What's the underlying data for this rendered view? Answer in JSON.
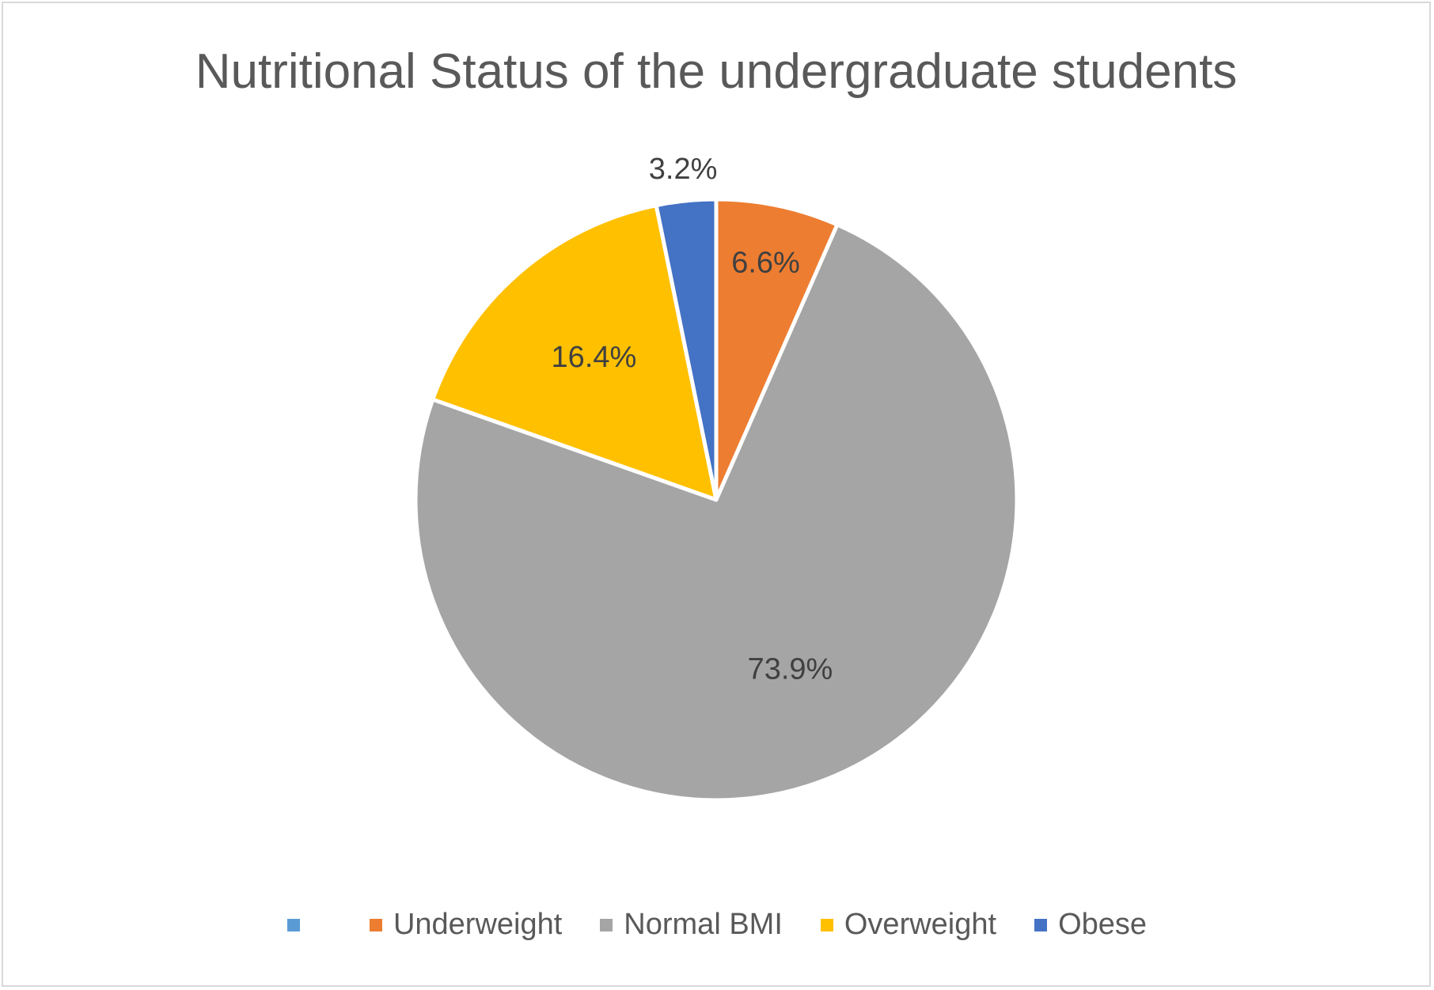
{
  "chart_data": {
    "type": "pie",
    "title": "Nutritional Status of the undergraduate students",
    "categories": [
      "",
      "Underweight",
      "Normal BMI",
      "Overweight",
      "Obese"
    ],
    "values": [
      0,
      6.6,
      73.9,
      16.4,
      3.2
    ],
    "data_labels": [
      "",
      "6.6%",
      "73.9%",
      "16.4%",
      "3.2%"
    ],
    "colors": [
      "#5b9bd5",
      "#ed7d31",
      "#a5a5a5",
      "#ffc000",
      "#4472c4"
    ],
    "legend_position": "bottom",
    "start_angle": "12 o'clock, clockwise"
  }
}
